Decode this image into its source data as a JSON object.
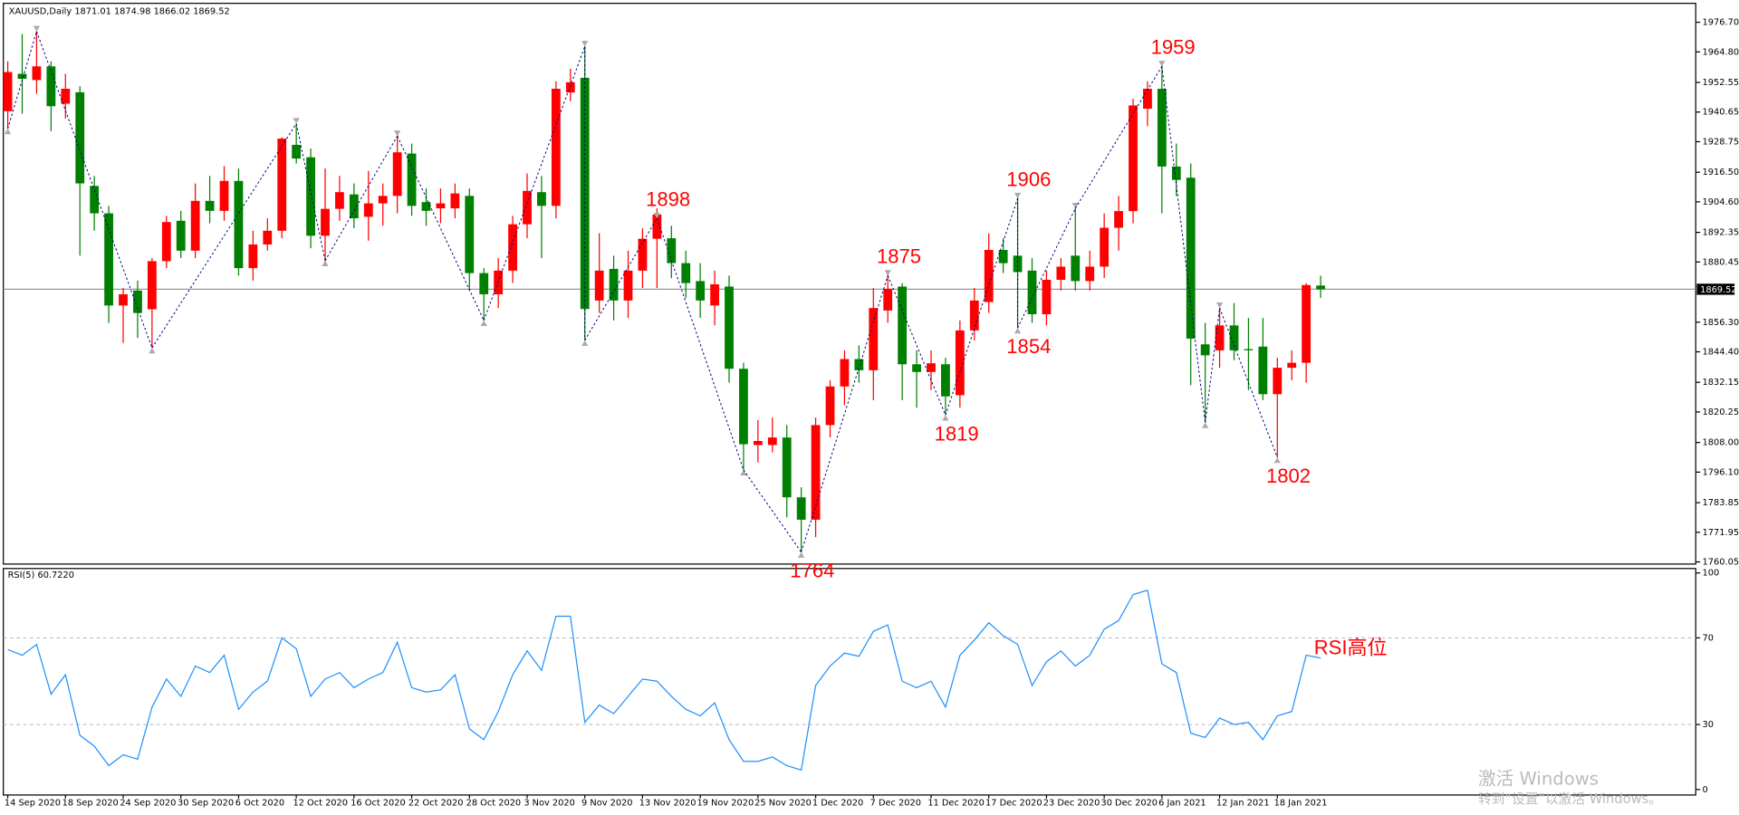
{
  "chart_data": [
    {
      "type": "candlestick",
      "title": "XAUUSD,Daily",
      "categories": [
        "14 Sep 2020",
        null,
        null,
        null,
        "18 Sep 2020",
        null,
        null,
        null,
        "24 Sep 2020",
        null,
        null,
        null,
        "30 Sep 2020",
        null,
        null,
        null,
        "6 Oct 2020",
        null,
        null,
        null,
        "12 Oct 2020",
        null,
        null,
        null,
        "16 Oct 2020",
        null,
        null,
        null,
        "22 Oct 2020",
        null,
        null,
        null,
        "28 Oct 2020",
        null,
        null,
        null,
        "3 Nov 2020",
        null,
        null,
        null,
        "9 Nov 2020",
        null,
        null,
        null,
        "13 Nov 2020",
        null,
        null,
        null,
        "19 Nov 2020",
        null,
        null,
        null,
        "25 Nov 2020",
        null,
        null,
        null,
        "1 Dec 2020",
        null,
        null,
        null,
        "7 Dec 2020",
        null,
        null,
        null,
        "11 Dec 2020",
        null,
        null,
        null,
        "17 Dec 2020",
        null,
        null,
        null,
        "23 Dec 2020",
        null,
        null,
        null,
        "30 Dec 2020",
        null,
        null,
        null,
        "6 Jan 2021",
        null,
        null,
        null,
        "12 Jan 2021",
        null,
        null,
        null,
        "18 Jan 2021",
        null,
        null,
        null
      ],
      "open": [
        1941,
        1956,
        1953.5,
        1959,
        1944,
        1948.6,
        1911,
        1900,
        1863,
        1869,
        1861.5,
        1880.8,
        1897,
        1885,
        1905,
        1901,
        1913,
        1878,
        1887.5,
        1893,
        1927.5,
        1922.5,
        1891,
        1901.8,
        1907.6,
        1898.6,
        1904,
        1907,
        1924,
        1904.5,
        1902,
        1902,
        1907,
        1876,
        1867.5,
        1877,
        1895.6,
        1908.5,
        1903,
        1948.5,
        1954.4,
        1865,
        1877.7,
        1865,
        1877,
        1889.8,
        1890,
        1880,
        1872.8,
        1863,
        1870.6,
        1837.6,
        1807,
        1807,
        1810,
        1786,
        1777,
        1815,
        1830.5,
        1841.5,
        1837,
        1861,
        1870.6,
        1839.4,
        1836.3,
        1839.4,
        1827,
        1853,
        1864.4,
        1885.3,
        1883,
        1877,
        1859.5,
        1873.3,
        1883,
        1872.8,
        1878.6,
        1894.2,
        1900.9,
        1942,
        1950,
        1918.8,
        1914.3,
        1847.4,
        1845,
        1855,
        1845.5,
        1846.5,
        1827.4,
        1838,
        1840,
        1871.01
      ],
      "high": [
        1961,
        1972,
        1973,
        1961,
        1956,
        1951,
        1915,
        1903,
        1870,
        1873,
        1882,
        1899,
        1901,
        1912,
        1915,
        1919,
        1918,
        1893,
        1898,
        1930.5,
        1936,
        1926,
        1918,
        1915,
        1912,
        1917,
        1912,
        1932,
        1928,
        1910,
        1910,
        1912,
        1910,
        1878,
        1882,
        1899,
        1916,
        1915,
        1953,
        1958,
        1967,
        1892,
        1883,
        1885,
        1894,
        1902,
        1895,
        1885,
        1880,
        1877,
        1875,
        1840,
        1817,
        1818,
        1815,
        1790,
        1818,
        1833,
        1845,
        1847,
        1870,
        1876,
        1872,
        1845,
        1845,
        1842,
        1857,
        1870,
        1892,
        1890,
        1908,
        1882,
        1877,
        1882,
        1902,
        1885,
        1900,
        1907,
        1946,
        1953,
        1960,
        1928,
        1920,
        1856,
        1862,
        1864,
        1858,
        1858,
        1842,
        1845,
        1872,
        1874.98
      ],
      "low": [
        1934,
        1940,
        1948,
        1933,
        1938,
        1883,
        1893,
        1856,
        1848,
        1850,
        1846,
        1878,
        1882,
        1882,
        1896,
        1897,
        1875,
        1873,
        1885,
        1890,
        1920,
        1886,
        1880,
        1897,
        1894,
        1889,
        1895,
        1900,
        1899,
        1895,
        1896,
        1898,
        1869,
        1857,
        1862,
        1872,
        1890,
        1882,
        1898,
        1945,
        1849,
        1860,
        1857,
        1858,
        1870,
        1870,
        1874,
        1866,
        1858,
        1855,
        1832,
        1797,
        1800,
        1804,
        1778,
        1764,
        1770,
        1810,
        1823,
        1832,
        1825,
        1856,
        1825,
        1822,
        1829,
        1819,
        1822,
        1849,
        1860,
        1876,
        1854,
        1856,
        1855,
        1869,
        1869,
        1869,
        1874,
        1885,
        1896,
        1935,
        1900,
        1907,
        1831,
        1816,
        1838,
        1841,
        1829,
        1825,
        1802,
        1833,
        1832,
        1866.02
      ],
      "close": [
        1956.7,
        1954,
        1959,
        1943,
        1950,
        1912,
        1900,
        1863,
        1867.5,
        1860,
        1880.8,
        1896.5,
        1885,
        1905,
        1901,
        1913,
        1878,
        1887.5,
        1893,
        1930,
        1922,
        1891,
        1901.8,
        1908.5,
        1898,
        1904,
        1907,
        1924.5,
        1903,
        1901,
        1904,
        1908,
        1876,
        1867.5,
        1877,
        1895.6,
        1909,
        1903,
        1950,
        1952.6,
        1861.6,
        1877,
        1865,
        1877,
        1889.8,
        1899.5,
        1880,
        1872,
        1865,
        1871.5,
        1837.6,
        1807.3,
        1808.6,
        1810,
        1786,
        1777,
        1815,
        1830.5,
        1841.5,
        1837,
        1862,
        1869.7,
        1839.4,
        1836.3,
        1839.8,
        1826.5,
        1853,
        1865,
        1885.3,
        1880,
        1876.4,
        1859.5,
        1873.3,
        1878.6,
        1872.8,
        1878.6,
        1894.2,
        1900.9,
        1943.3,
        1950,
        1918.8,
        1913.4,
        1849.7,
        1843,
        1855,
        1845,
        1845,
        1827.4,
        1838,
        1840,
        1871.2,
        1869.52
      ],
      "up_color": "#ff0000",
      "down_color": "#008000",
      "zigzag": [
        {
          "bar": 0,
          "value": 1934
        },
        {
          "bar": 2,
          "value": 1973
        },
        {
          "bar": 10,
          "value": 1846
        },
        {
          "bar": 20,
          "value": 1936
        },
        {
          "bar": 22,
          "value": 1881
        },
        {
          "bar": 27,
          "value": 1931
        },
        {
          "bar": 33,
          "value": 1857
        },
        {
          "bar": 40,
          "value": 1967
        },
        {
          "bar": 40,
          "value": 1849
        },
        {
          "bar": 45,
          "value": 1898,
          "labeled": true
        },
        {
          "bar": 51,
          "value": 1797
        },
        {
          "bar": 55,
          "value": 1764,
          "labeled": true
        },
        {
          "bar": 61,
          "value": 1875,
          "labeled": true
        },
        {
          "bar": 65,
          "value": 1819,
          "labeled": true
        },
        {
          "bar": 70,
          "value": 1906,
          "labeled": true
        },
        {
          "bar": 70,
          "value": 1854,
          "labeled": true
        },
        {
          "bar": 74,
          "value": 1902
        },
        {
          "bar": 80,
          "value": 1959,
          "labeled": true
        },
        {
          "bar": 83,
          "value": 1816
        },
        {
          "bar": 84,
          "value": 1862
        },
        {
          "bar": 88,
          "value": 1802,
          "labeled": true
        }
      ],
      "ylim": [
        1759.2,
        1984.3
      ],
      "yticks": [
        1760.05,
        1771.95,
        1783.85,
        {
          "value": 1796.1,
          "label": "1796.10"
        },
        {
          "value": 1808,
          "label": "1808.00"
        },
        1820.25,
        1832.15,
        {
          "value": 1844.4,
          "label": "1844.40"
        },
        {
          "value": 1856.3,
          "label": "1856.30"
        },
        1880.45,
        1892.35,
        {
          "value": 1904.6,
          "label": "1904.60"
        },
        {
          "value": 1916.5,
          "label": "1916.50"
        },
        1928.75,
        1940.65,
        1952.55,
        {
          "value": 1964.8,
          "label": "1964.80"
        },
        {
          "value": 1976.7,
          "label": "1976.70"
        }
      ]
    },
    {
      "type": "line",
      "title": "RSI(5) 60.7220",
      "color": "#1e90ff",
      "values": [
        64.6,
        62,
        67,
        44,
        53,
        25,
        20,
        11,
        16,
        14,
        38,
        51,
        43,
        57,
        54,
        62,
        37,
        45,
        50,
        70,
        65,
        43,
        51,
        54,
        47,
        51,
        54,
        68,
        47,
        45,
        46,
        53,
        28,
        23,
        36,
        53,
        64,
        55,
        80,
        80,
        31,
        39,
        35,
        43,
        51,
        50,
        43,
        37,
        34,
        40,
        23,
        13,
        13,
        15,
        11,
        9,
        48,
        57,
        63,
        61.5,
        73,
        76,
        50,
        47,
        50,
        38,
        62,
        69,
        77,
        71,
        67,
        48,
        59,
        64,
        57,
        62,
        74,
        78,
        90,
        92,
        58,
        54,
        26,
        24,
        33,
        30,
        31,
        23,
        34,
        36,
        62,
        60.722
      ],
      "annotation": "RSI高位",
      "ylim": [
        0,
        100
      ],
      "yticks": [
        0,
        30,
        70,
        100
      ],
      "levels": [
        30,
        70
      ]
    }
  ],
  "watermark": {
    "title": "激活 Windows",
    "subtitle": "转到“设置”以激活 Windows。"
  }
}
